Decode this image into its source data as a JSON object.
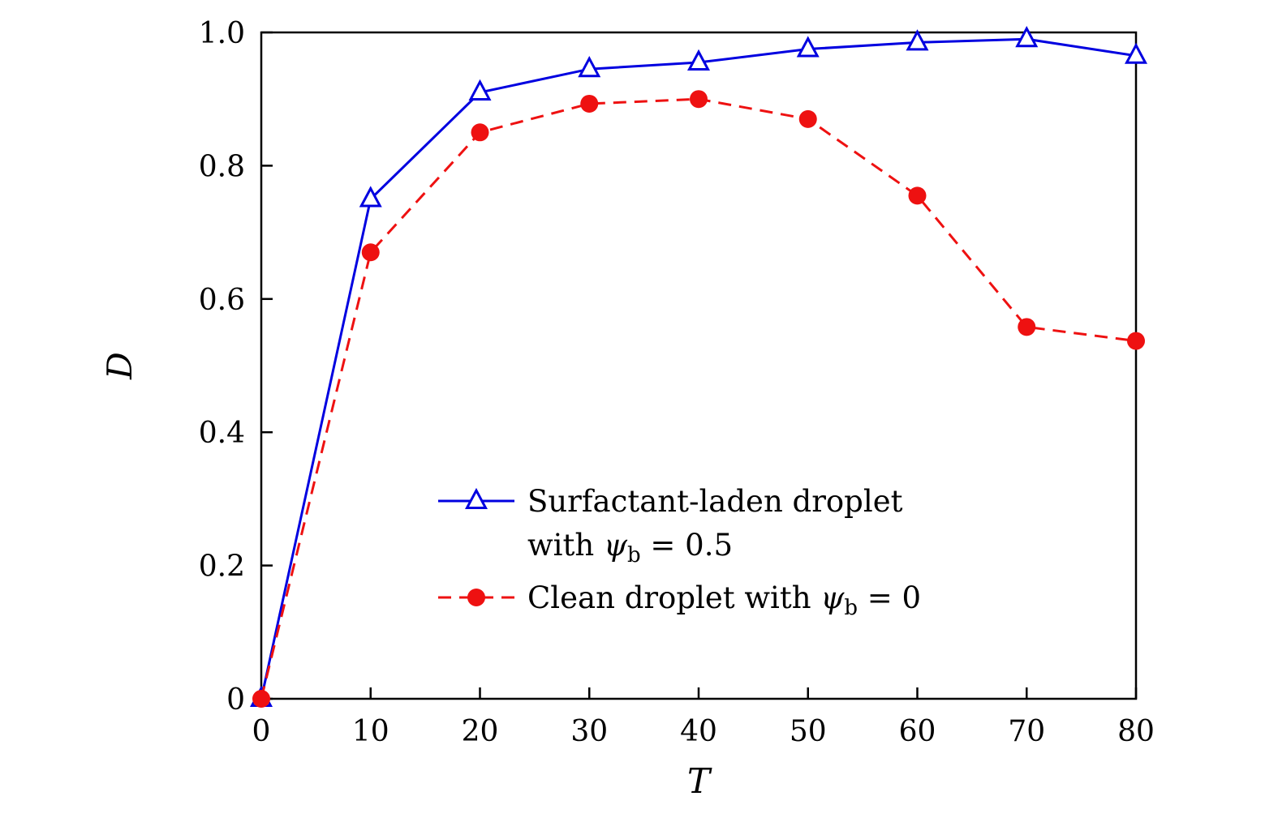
{
  "figure": {
    "background": "#ffffff"
  },
  "chart_data": {
    "type": "line",
    "title": "",
    "xlabel": "T",
    "ylabel": "D",
    "xlim": [
      0,
      80
    ],
    "ylim": [
      0,
      1.0
    ],
    "grid": false,
    "legend_position": "inside lower-center-right",
    "x": [
      0,
      10,
      20,
      30,
      40,
      50,
      60,
      70,
      80
    ],
    "series": [
      {
        "name": "Surfactant-laden droplet with ψ_b = 0.5",
        "values": [
          0,
          0.75,
          0.91,
          0.945,
          0.955,
          0.975,
          0.985,
          0.99,
          0.965
        ],
        "color": "#0000e0",
        "line": "solid",
        "marker": "triangle-open"
      },
      {
        "name": "Clean droplet with ψ_b = 0",
        "values": [
          0,
          0.67,
          0.85,
          0.893,
          0.9,
          0.87,
          0.755,
          0.558,
          0.537
        ],
        "color": "#ee1111",
        "line": "dashed",
        "marker": "circle-filled"
      }
    ],
    "xticks": {
      "values": [
        0,
        10,
        20,
        30,
        40,
        50,
        60,
        70,
        80
      ],
      "labels": [
        "0",
        "10",
        "20",
        "30",
        "40",
        "50",
        "60",
        "70",
        "80"
      ]
    },
    "yticks": {
      "values": [
        0,
        0.2,
        0.4,
        0.6,
        0.8,
        1.0
      ],
      "labels": [
        "0",
        "0.2",
        "0.4",
        "0.6",
        "0.8",
        "1.0"
      ]
    }
  },
  "legend": {
    "entries": [
      {
        "line1": "Surfactant-laden droplet",
        "line2_prefix": "with ",
        "line2_symbol": "ψ",
        "line2_sub": "b",
        "line2_suffix": " = 0.5"
      },
      {
        "prefix": "Clean droplet with ",
        "symbol": "ψ",
        "sub": "b",
        "suffix": " = 0"
      }
    ]
  }
}
